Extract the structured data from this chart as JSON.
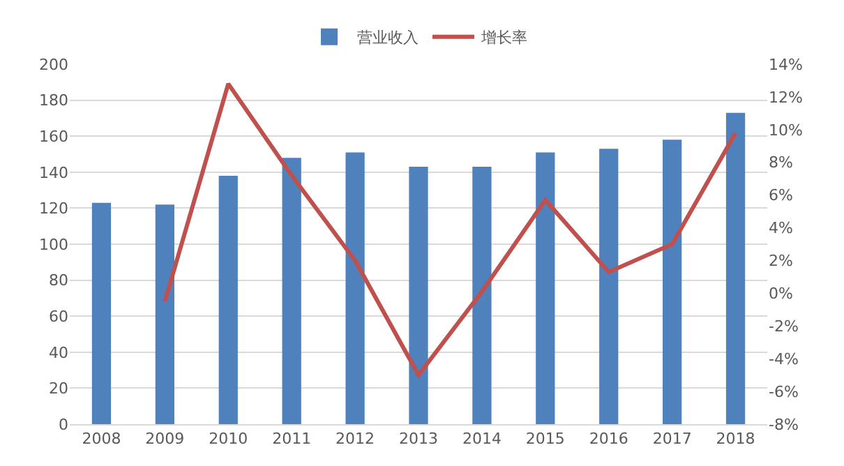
{
  "chart_data": {
    "type": "bar",
    "categories": [
      "2008",
      "2009",
      "2010",
      "2011",
      "2012",
      "2013",
      "2014",
      "2015",
      "2016",
      "2017",
      "2018"
    ],
    "series": [
      {
        "name": "营业收入",
        "color": "#4f81bd",
        "values": [
          123,
          122,
          138,
          148,
          151,
          143,
          143,
          151,
          153,
          158,
          173
        ]
      },
      {
        "name": "增长率",
        "type": "line",
        "axis": "y2",
        "color": "#c0504d",
        "values": [
          null,
          -0.5,
          12.8,
          7.2,
          2.0,
          -5.0,
          0.1,
          5.7,
          1.3,
          3.0,
          9.8
        ]
      }
    ],
    "ylim": [
      0,
      200
    ],
    "yticks": [
      0,
      20,
      40,
      60,
      80,
      100,
      120,
      140,
      160,
      180,
      200
    ],
    "y2lim": [
      -8,
      14
    ],
    "y2ticks": [
      {
        "value": -8,
        "label": "-8%"
      },
      {
        "value": -6,
        "label": "-6%"
      },
      {
        "value": -4,
        "label": "-4%"
      },
      {
        "value": -2,
        "label": "-2%"
      },
      {
        "value": 0,
        "label": "0%"
      },
      {
        "value": 2,
        "label": "2%"
      },
      {
        "value": 4,
        "label": "4%"
      },
      {
        "value": 6,
        "label": "6%"
      },
      {
        "value": 8,
        "label": "8%"
      },
      {
        "value": 10,
        "label": "10%"
      },
      {
        "value": 12,
        "label": "12%"
      },
      {
        "value": 14,
        "label": "14%"
      }
    ],
    "grid": "y",
    "legend": "top",
    "marker": "none",
    "line_style": "solid"
  }
}
